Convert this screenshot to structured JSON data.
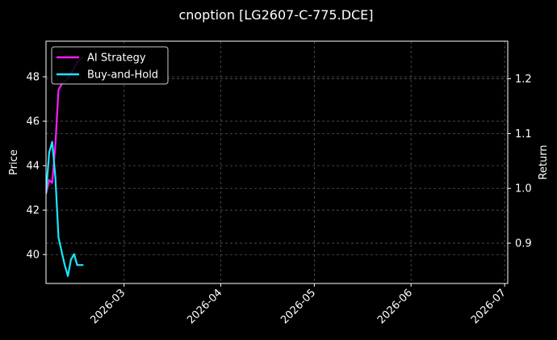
{
  "chart_data": {
    "type": "line",
    "title": "cnoption [LG2607-C-775.DCE]",
    "xlabel": "",
    "ylabel": "Price",
    "y2label": "Return",
    "x_tick_labels": [
      "2026-03",
      "2026-04",
      "2026-05",
      "2026-06",
      "2026-07"
    ],
    "x_ticks": [
      "2026-03-01",
      "2026-04-01",
      "2026-05-01",
      "2026-06-01",
      "2026-07-01"
    ],
    "xlim": [
      "2026-02-04",
      "2026-07-02"
    ],
    "ylim": [
      38.7,
      49.6
    ],
    "y_ticks": [
      40,
      42,
      44,
      46,
      48
    ],
    "y2lim": [
      0.8264,
      1.2686
    ],
    "y2_ticks": [
      0.9,
      1.0,
      1.1,
      1.2
    ],
    "grid": true,
    "legend_position": "top-left",
    "series": [
      {
        "name": "AI Strategy",
        "axis": "right",
        "color": "#ff1aff",
        "x": [
          "2026-02-04",
          "2026-02-05",
          "2026-02-06",
          "2026-02-07",
          "2026-02-08",
          "2026-02-09",
          "2026-02-10",
          "2026-02-11",
          "2026-02-12",
          "2026-02-13",
          "2026-02-14",
          "2026-02-15",
          "2026-02-16"
        ],
        "y": [
          0.99,
          1.015,
          1.01,
          1.08,
          1.18,
          1.19,
          1.195,
          1.2,
          1.21,
          1.22,
          1.23,
          1.235,
          1.24
        ]
      },
      {
        "name": "Buy-and-Hold",
        "axis": "right",
        "color": "#1ae6ff",
        "x": [
          "2026-02-04",
          "2026-02-05",
          "2026-02-06",
          "2026-02-07",
          "2026-02-08",
          "2026-02-09",
          "2026-02-10",
          "2026-02-11",
          "2026-02-12",
          "2026-02-13",
          "2026-02-14",
          "2026-02-15",
          "2026-02-16"
        ],
        "y": [
          0.99,
          1.065,
          1.085,
          1.02,
          0.91,
          0.885,
          0.86,
          0.84,
          0.87,
          0.88,
          0.86,
          0.86,
          0.86
        ]
      }
    ]
  },
  "colors": {
    "background": "#000000",
    "axes": "#ffffff",
    "grid": "#555555",
    "legend_bg": "#000000",
    "legend_edge": "#cccccc"
  }
}
